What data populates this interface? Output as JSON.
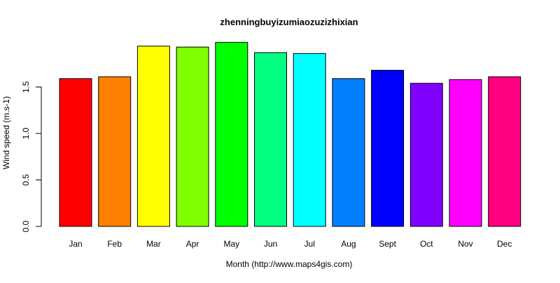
{
  "chart_data": {
    "type": "bar",
    "title": "zhenningbuyizumiaozuzizhixian",
    "xlabel": "Month (http://www.maps4gis.com)",
    "ylabel": "Wind speed (m.s-1)",
    "categories": [
      "Jan",
      "Feb",
      "Mar",
      "Apr",
      "May",
      "Jun",
      "Jul",
      "Aug",
      "Sept",
      "Oct",
      "Nov",
      "Dec"
    ],
    "values": [
      1.59,
      1.61,
      1.94,
      1.93,
      1.98,
      1.87,
      1.86,
      1.59,
      1.68,
      1.54,
      1.58,
      1.61
    ],
    "colors": [
      "#FF0000",
      "#FF8000",
      "#FFFF00",
      "#80FF00",
      "#00FF00",
      "#00FF80",
      "#00FFFF",
      "#0080FF",
      "#0000FF",
      "#8000FF",
      "#FF00FF",
      "#FF0080"
    ],
    "yticks": [
      "0.0",
      "0.5",
      "1.0",
      "1.5"
    ],
    "ylim": [
      0,
      2.0
    ],
    "grid": false,
    "legend": "none"
  }
}
